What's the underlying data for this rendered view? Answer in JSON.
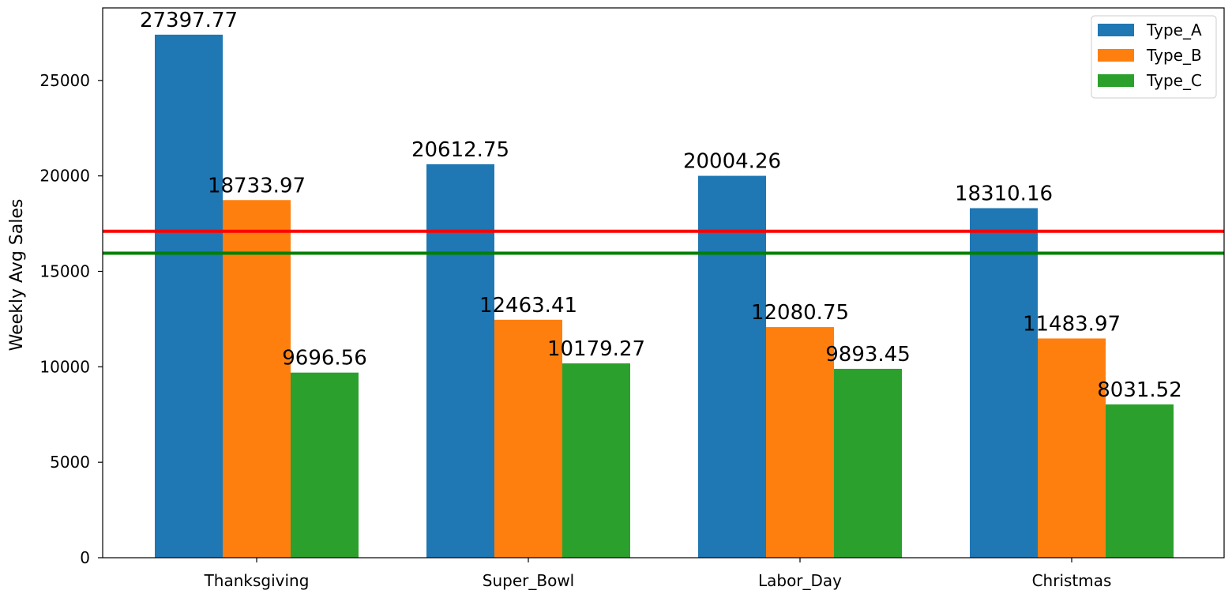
{
  "chart_data": {
    "type": "bar",
    "title": "",
    "xlabel": "",
    "ylabel": "Weekly Avg Sales",
    "ylim": [
      0,
      28800
    ],
    "yticks": [
      0,
      5000,
      10000,
      15000,
      20000,
      25000
    ],
    "categories": [
      "Thanksgiving",
      "Super_Bowl",
      "Labor_Day",
      "Christmas"
    ],
    "series": [
      {
        "name": "Type_A",
        "color": "#1f77b4",
        "values": [
          27397.77,
          20612.75,
          20004.26,
          18310.16
        ],
        "labels": [
          "27397.77",
          "20612.75",
          "20004.26",
          "18310.16"
        ]
      },
      {
        "name": "Type_B",
        "color": "#ff7f0e",
        "values": [
          18733.97,
          12463.41,
          12080.75,
          11483.97
        ],
        "labels": [
          "18733.97",
          "12463.41",
          "12080.75",
          "11483.97"
        ]
      },
      {
        "name": "Type_C",
        "color": "#2ca02c",
        "values": [
          9696.56,
          10179.27,
          9893.45,
          8031.52
        ],
        "labels": [
          "9696.56",
          "10179.27",
          "9893.45",
          "8031.52"
        ]
      }
    ],
    "reference_lines": [
      {
        "value": 17100,
        "color": "#ff0000"
      },
      {
        "value": 15950,
        "color": "#008000"
      }
    ],
    "grid": false,
    "legend_position": "top-right"
  }
}
